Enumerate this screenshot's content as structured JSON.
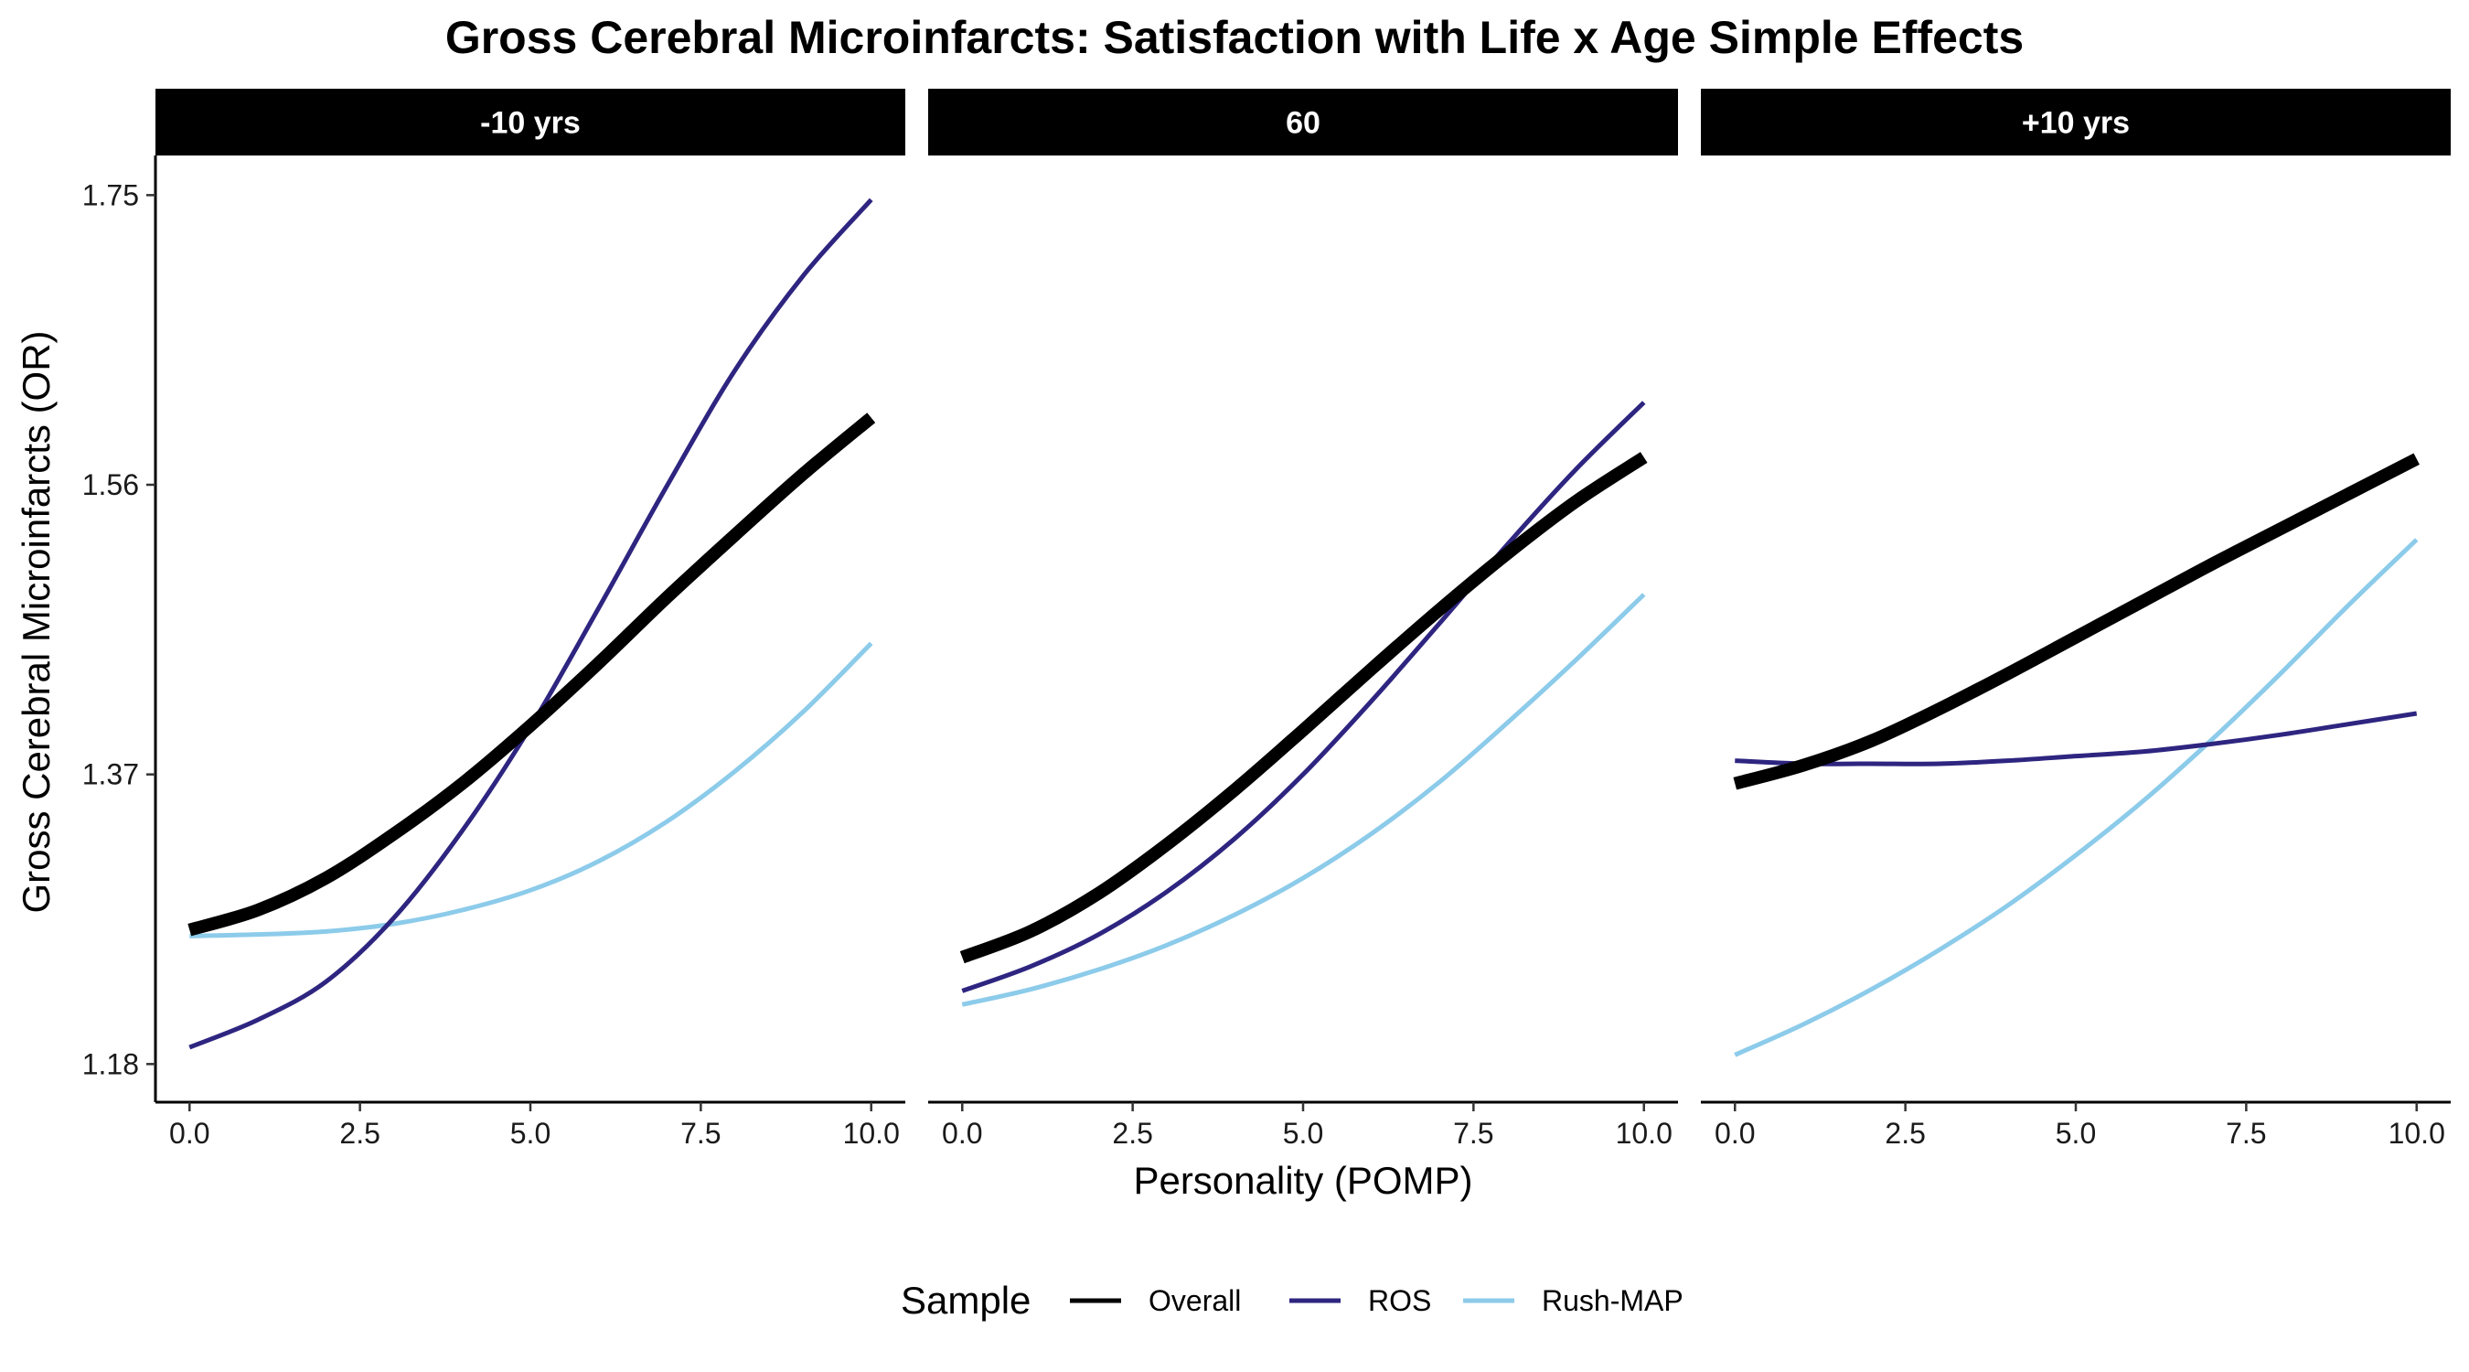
{
  "chart_data": {
    "type": "line",
    "title": "Gross Cerebral Microinfarcts: Satisfaction with Life x Age Simple Effects",
    "xlabel": "Personality (POMP)",
    "ylabel": "Gross Cerebral Microinfarcts (OR)",
    "xlim": [
      -0.5,
      10.5
    ],
    "ylim": [
      1.155,
      1.776
    ],
    "x_ticks": [
      0,
      2.5,
      5,
      7.5,
      10
    ],
    "x_tick_labels": [
      "0.0",
      "2.5",
      "5.0",
      "7.5",
      "10.0"
    ],
    "y_ticks": [
      1.18,
      1.37,
      1.56,
      1.75
    ],
    "y_tick_labels": [
      "1.18",
      "1.37",
      "1.56",
      "1.75"
    ],
    "grid": false,
    "legend_title": "Sample",
    "legend_position": "bottom",
    "legend": [
      {
        "name": "Overall",
        "color": "#000000"
      },
      {
        "name": "ROS",
        "color": "#2e2580"
      },
      {
        "name": "Rush-MAP",
        "color": "#8ccbea"
      }
    ],
    "x": [
      0,
      1,
      2,
      3,
      4,
      5,
      6,
      7,
      8,
      9,
      10
    ],
    "panels": [
      {
        "label": "-10 yrs",
        "series": [
          {
            "name": "Overall",
            "values": [
              1.268,
              1.281,
              1.302,
              1.331,
              1.364,
              1.402,
              1.443,
              1.486,
              1.527,
              1.567,
              1.604
            ]
          },
          {
            "name": "ROS",
            "values": [
              1.191,
              1.209,
              1.234,
              1.276,
              1.333,
              1.401,
              1.479,
              1.559,
              1.635,
              1.697,
              1.747
            ]
          },
          {
            "name": "Rush-MAP",
            "values": [
              1.264,
              1.265,
              1.267,
              1.272,
              1.281,
              1.294,
              1.313,
              1.339,
              1.372,
              1.411,
              1.456
            ]
          }
        ]
      },
      {
        "label": "60",
        "series": [
          {
            "name": "Overall",
            "values": [
              1.25,
              1.267,
              1.292,
              1.324,
              1.36,
              1.399,
              1.439,
              1.478,
              1.515,
              1.549,
              1.578
            ]
          },
          {
            "name": "ROS",
            "values": [
              1.228,
              1.244,
              1.265,
              1.293,
              1.328,
              1.37,
              1.418,
              1.469,
              1.521,
              1.57,
              1.614
            ]
          },
          {
            "name": "Rush-MAP",
            "values": [
              1.219,
              1.229,
              1.242,
              1.258,
              1.278,
              1.302,
              1.331,
              1.365,
              1.404,
              1.445,
              1.488
            ]
          }
        ]
      },
      {
        "label": "+10 yrs",
        "series": [
          {
            "name": "Overall",
            "values": [
              1.364,
              1.376,
              1.392,
              1.413,
              1.436,
              1.46,
              1.484,
              1.508,
              1.531,
              1.554,
              1.577
            ]
          },
          {
            "name": "ROS",
            "values": [
              1.379,
              1.377,
              1.377,
              1.377,
              1.379,
              1.382,
              1.385,
              1.39,
              1.396,
              1.403,
              1.41
            ]
          },
          {
            "name": "Rush-MAP",
            "values": [
              1.186,
              1.206,
              1.229,
              1.255,
              1.284,
              1.317,
              1.353,
              1.393,
              1.436,
              1.481,
              1.524
            ]
          }
        ]
      }
    ]
  }
}
